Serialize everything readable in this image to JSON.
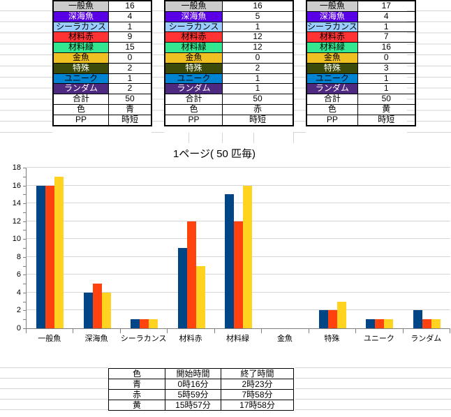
{
  "summary_tables": {
    "row_headers": [
      {
        "label": "一般魚",
        "bg": "#CCCCCC",
        "fg": "#000000"
      },
      {
        "label": "深海魚",
        "bg": "#5A00E6",
        "fg": "#FFFFFF"
      },
      {
        "label": "シーラカンス",
        "bg": "#99CCFF",
        "fg": "#000000"
      },
      {
        "label": "材料赤",
        "bg": "#FF3333",
        "fg": "#000000"
      },
      {
        "label": "材料緑",
        "bg": "#33E690",
        "fg": "#000000"
      },
      {
        "label": "金魚",
        "bg": "#EEC022",
        "fg": "#000000"
      },
      {
        "label": "特殊",
        "bg": "#3C4A0A",
        "fg": "#FFFFFF"
      },
      {
        "label": "ユニーク",
        "bg": "#0084D1",
        "fg": "#000000"
      },
      {
        "label": "ランダム",
        "bg": "#4D2A80",
        "fg": "#FFFFFF"
      },
      {
        "label": "合計",
        "bg": "#FFFFFF",
        "fg": "#000000"
      },
      {
        "label": "色",
        "bg": "#FFFFFF",
        "fg": "#000000"
      },
      {
        "label": "PP",
        "bg": "#FFFFFF",
        "fg": "#000000"
      }
    ],
    "columns": [
      {
        "values": [
          "16",
          "4",
          "1",
          "9",
          "15",
          "0",
          "2",
          "1",
          "2",
          "50",
          "青",
          "時短"
        ]
      },
      {
        "values": [
          "16",
          "5",
          "1",
          "12",
          "12",
          "0",
          "2",
          "1",
          "1",
          "50",
          "赤",
          "時短"
        ]
      },
      {
        "values": [
          "17",
          "4",
          "1",
          "7",
          "16",
          "0",
          "3",
          "1",
          "1",
          "50",
          "黄",
          "時短"
        ]
      }
    ]
  },
  "chart_data": {
    "type": "bar",
    "title": "1ページ( 50 匹毎)",
    "categories": [
      "一般魚",
      "深海魚",
      "シーラカンス",
      "材料赤",
      "材料緑",
      "金魚",
      "特殊",
      "ユニーク",
      "ランダム"
    ],
    "series": [
      {
        "name": "青",
        "color": "#004586",
        "values": [
          16,
          4,
          1,
          9,
          15,
          0,
          2,
          1,
          2
        ]
      },
      {
        "name": "赤",
        "color": "#FF420E",
        "values": [
          16,
          5,
          1,
          12,
          12,
          0,
          2,
          1,
          1
        ]
      },
      {
        "name": "黄",
        "color": "#FFD320",
        "values": [
          17,
          4,
          1,
          7,
          16,
          0,
          3,
          1,
          1
        ]
      }
    ],
    "ylim": [
      0,
      18
    ],
    "ytick_step": 2,
    "grid": true,
    "legend": "none",
    "gridline_color": "#D6D6D6",
    "axis_color": "#808080"
  },
  "time_table": {
    "headers": [
      "色",
      "開始時間",
      "終了時間"
    ],
    "rows": [
      [
        "青",
        "0時16分",
        "2時23分"
      ],
      [
        "赤",
        "5時59分",
        "7時58分"
      ],
      [
        "黄",
        "15時57分",
        "17時58分"
      ]
    ]
  }
}
